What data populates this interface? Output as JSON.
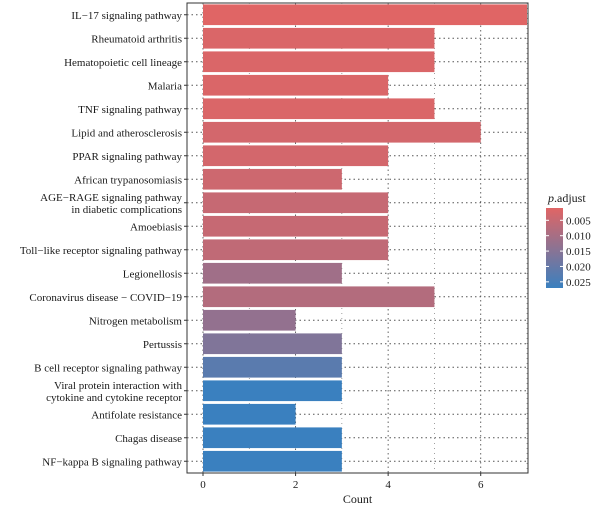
{
  "chart_data": {
    "type": "bar",
    "orientation": "horizontal",
    "categories": [
      "IL−17 signaling pathway",
      "Rheumatoid arthritis",
      "Hematopoietic cell lineage",
      "Malaria",
      "TNF signaling pathway",
      "Lipid and atherosclerosis",
      "PPAR signaling pathway",
      "African trypanosomiasis",
      "AGE−RAGE signaling pathway\nin diabetic complications",
      "Amoebiasis",
      "Toll−like receptor signaling pathway",
      "Legionellosis",
      "Coronavirus disease − COVID−19",
      "Nitrogen metabolism",
      "Pertussis",
      "B cell receptor signaling pathway",
      "Viral protein interaction with\ncytokine and cytokine receptor",
      "Antifolate resistance",
      "Chagas disease",
      "NF−kappa B signaling pathway"
    ],
    "values": [
      7,
      5,
      5,
      4,
      5,
      6,
      4,
      3,
      4,
      4,
      4,
      3,
      5,
      2,
      3,
      3,
      3,
      2,
      3,
      3
    ],
    "p_adjust": [
      0.001,
      0.002,
      0.002,
      0.002,
      0.002,
      0.003,
      0.003,
      0.004,
      0.005,
      0.005,
      0.006,
      0.011,
      0.008,
      0.013,
      0.016,
      0.022,
      0.027,
      0.027,
      0.027,
      0.027
    ],
    "xlabel": "Count",
    "ylabel": "",
    "xlim": [
      0,
      7.3
    ],
    "xticks": [
      0,
      2,
      4,
      6
    ],
    "grid": true,
    "legend": {
      "title_prefix": "p",
      "title_suffix": ".adjust",
      "placement": "right",
      "ticks": [
        0.005,
        0.01,
        0.015,
        0.02,
        0.025
      ],
      "tick_labels": [
        "0.005",
        "0.010",
        "0.015",
        "0.020",
        "0.025"
      ],
      "range": [
        0.001,
        0.027
      ],
      "color_low": "#E06565",
      "color_high": "#3A80BF"
    }
  }
}
